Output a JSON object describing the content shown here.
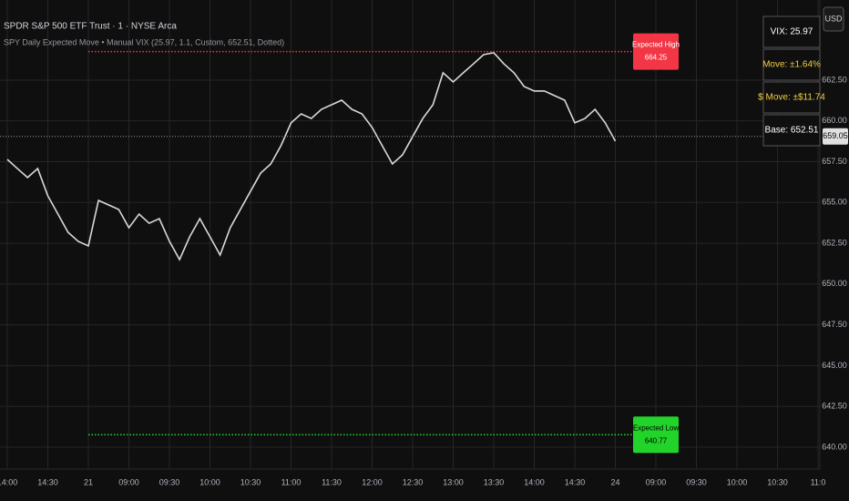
{
  "header": {
    "symbol": "SPDR S&P 500 ETF Trust · 1 · NYSE Arca",
    "indicator": "SPY Daily Expected Move • Manual VIX (25.97, 1.1, Custom, 652.51, Dotted)",
    "currency": "USD"
  },
  "panel": [
    "VIX: 25.97",
    "Move: ±1.64%",
    "$ Move: ±$11.74",
    "Base: 652.51"
  ],
  "chart_data": {
    "type": "line",
    "categories": [
      "14:00",
      null,
      null,
      null,
      "14:30",
      null,
      null,
      null,
      "21",
      null,
      null,
      null,
      "09:00",
      null,
      null,
      null,
      "09:30",
      null,
      null,
      null,
      "10:00",
      null,
      null,
      null,
      "10:30",
      null,
      null,
      null,
      "11:00",
      null,
      null,
      null,
      "11:30",
      null,
      null,
      null,
      "12:00",
      null,
      null,
      null,
      "12:30",
      null,
      null,
      null,
      "13:00",
      null,
      null,
      null,
      "13:30",
      null,
      null,
      null,
      "14:00",
      null,
      null,
      null,
      "14:30",
      null,
      null,
      null,
      "24",
      null,
      null,
      null,
      "09:00",
      null,
      null,
      null,
      "09:30",
      null,
      null,
      null,
      "10:00",
      null,
      null,
      null,
      "10:30",
      null,
      null,
      null,
      "11:0"
    ],
    "series": [
      {
        "name": "SPY",
        "color": "#d9d9d9",
        "values": [
          657.64,
          657.08,
          656.53,
          657.08,
          655.41,
          654.29,
          653.17,
          652.62,
          652.34,
          655.13,
          654.85,
          654.57,
          653.45,
          654.29,
          653.73,
          654.01,
          652.62,
          651.5,
          652.9,
          654.01,
          652.9,
          651.78,
          653.45,
          654.57,
          655.69,
          656.8,
          657.36,
          658.48,
          659.88,
          660.43,
          660.15,
          660.71,
          660.99,
          661.27,
          660.71,
          660.43,
          659.6,
          658.48,
          657.36,
          657.92,
          659.04,
          660.15,
          660.99,
          662.95,
          662.39,
          662.95,
          663.5,
          664.06,
          664.18,
          663.5,
          662.95,
          662.11,
          661.83,
          661.83,
          661.55,
          661.27,
          659.88,
          660.15,
          660.71,
          659.88,
          658.76,
          null,
          null,
          null,
          null,
          null,
          null,
          null,
          null,
          null,
          null,
          null,
          null,
          null,
          null,
          null,
          null,
          null,
          null,
          null,
          null
        ]
      }
    ],
    "ylim": [
      638.66,
      667.41
    ],
    "yticks": [
      {
        "value": 640,
        "label": "640.00"
      },
      {
        "value": 642.5,
        "label": "642.50"
      },
      {
        "value": 645,
        "label": "645.00"
      },
      {
        "value": 647.5,
        "label": "647.50"
      },
      {
        "value": 650,
        "label": "650.00"
      },
      {
        "value": 652.5,
        "label": "652.50"
      },
      {
        "value": 655,
        "label": "655.00"
      },
      {
        "value": 657.5,
        "label": "657.50"
      },
      {
        "value": 660,
        "label": "660.00"
      },
      {
        "value": 662.5,
        "label": "662.50"
      }
    ],
    "grid": true,
    "reference_lines": [
      {
        "name": "Expected High",
        "value": 664.25,
        "color": "#f23645"
      },
      {
        "name": "Expected Low",
        "value": 640.77,
        "color": "#22d42a"
      }
    ],
    "last_price": {
      "value": 659.05,
      "color": "#9e9e9e"
    }
  }
}
